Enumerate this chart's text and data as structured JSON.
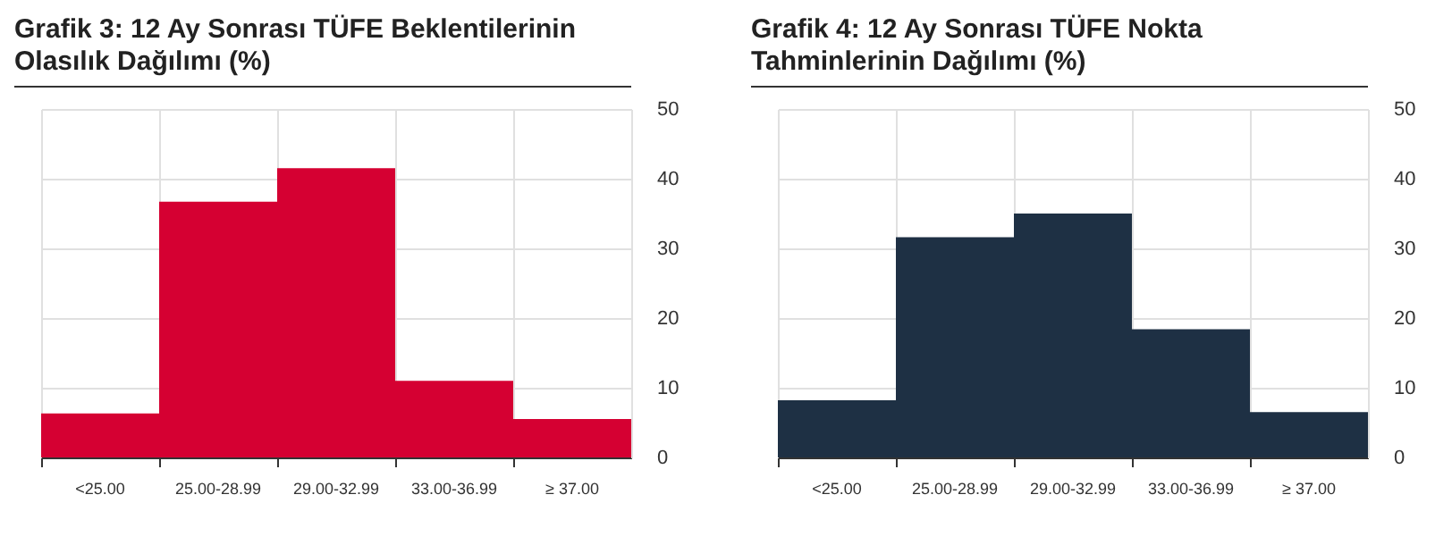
{
  "chart_data": [
    {
      "type": "bar",
      "title": "Grafik 3: 12 Ay Sonrası TÜFE Beklentilerinin Olasılık Dağılımı (%)",
      "categories": [
        "<25.00",
        "25.00-28.99",
        "29.00-32.99",
        "33.00-36.99",
        "≥ 37.00"
      ],
      "values": [
        6.3,
        36.7,
        41.5,
        11.0,
        5.5
      ],
      "color": "#d50032",
      "ylim": [
        0,
        50
      ],
      "yticks": [
        0,
        10,
        20,
        30,
        40,
        50
      ],
      "grid": true
    },
    {
      "type": "bar",
      "title": "Grafik 4: 12 Ay Sonrası TÜFE Nokta Tahminlerinin Dağılımı (%)",
      "categories": [
        "<25.00",
        "25.00-28.99",
        "29.00-32.99",
        "33.00-36.99",
        "≥ 37.00"
      ],
      "values": [
        8.2,
        31.6,
        35.0,
        18.4,
        6.5
      ],
      "color": "#1e3044",
      "ylim": [
        0,
        50
      ],
      "yticks": [
        0,
        10,
        20,
        30,
        40,
        50
      ],
      "grid": true
    }
  ]
}
